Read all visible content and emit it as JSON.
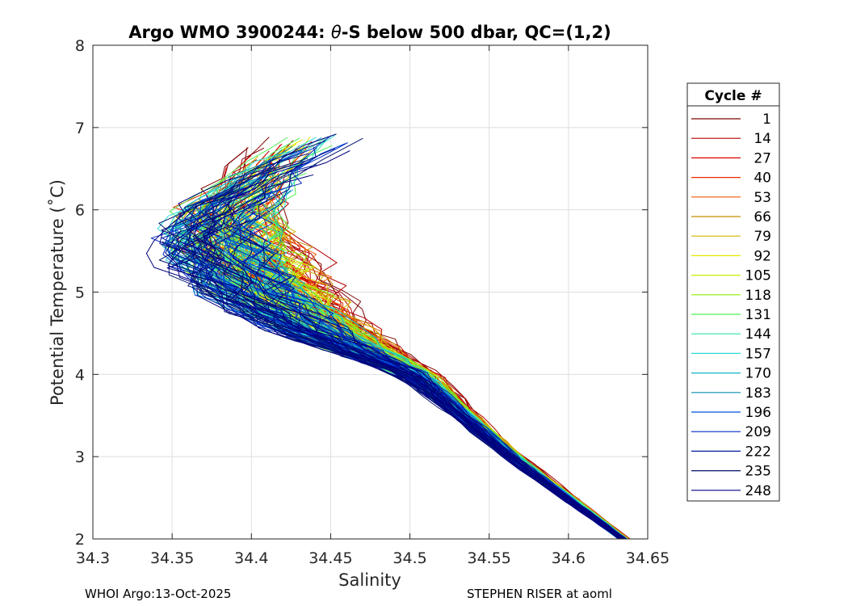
{
  "chart_data": {
    "type": "line",
    "title": "Argo WMO 3900244: θ-S below 500 dbar,  QC=(1,2)",
    "title_prefix": "Argo WMO 3900244: ",
    "title_theta": "θ",
    "title_suffix": "-S below 500 dbar,  QC=(1,2)",
    "xlabel": "Salinity",
    "ylabel": "Potential Temperature (˚C)",
    "xlim": [
      34.3,
      34.65
    ],
    "ylim": [
      2,
      8
    ],
    "xticks": [
      "34.3",
      "34.35",
      "34.4",
      "34.45",
      "34.5",
      "34.55",
      "34.6",
      "34.65"
    ],
    "yticks": [
      "2",
      "3",
      "4",
      "5",
      "6",
      "7",
      "8"
    ],
    "grid": true,
    "legend": {
      "title": "Cycle #",
      "position": "right",
      "entries": [
        "1",
        "14",
        "27",
        "40",
        "53",
        "66",
        "79",
        "92",
        "105",
        "118",
        "131",
        "144",
        "157",
        "170",
        "183",
        "196",
        "209",
        "222",
        "235",
        "248"
      ],
      "colors": [
        "#800000",
        "#b40000",
        "#dc0000",
        "#e62a00",
        "#f05a00",
        "#c88c00",
        "#d2b400",
        "#e6e600",
        "#c8f000",
        "#8cf000",
        "#50f050",
        "#32e6a0",
        "#28dcd2",
        "#14b4c8",
        "#0a8cb4",
        "#0050dc",
        "#0028c8",
        "#001ea0",
        "#00146e",
        "#000080"
      ]
    },
    "series_description": "Theta-S profiles for each cycle, envelope read from figure",
    "envelope": {
      "theta": [
        2.0,
        2.5,
        3.0,
        3.5,
        4.0,
        4.3,
        4.6,
        5.0,
        5.5,
        6.0,
        6.5,
        7.0
      ],
      "sal_center": [
        34.635,
        34.6,
        34.565,
        34.535,
        34.505,
        34.47,
        34.44,
        34.41,
        34.39,
        34.38,
        34.4,
        34.43
      ],
      "sal_spread": [
        0.004,
        0.006,
        0.008,
        0.01,
        0.016,
        0.03,
        0.045,
        0.055,
        0.06,
        0.05,
        0.035,
        0.025
      ]
    }
  },
  "footer": {
    "left": "WHOI Argo:13-Oct-2025",
    "right": "STEPHEN RISER at aoml"
  }
}
